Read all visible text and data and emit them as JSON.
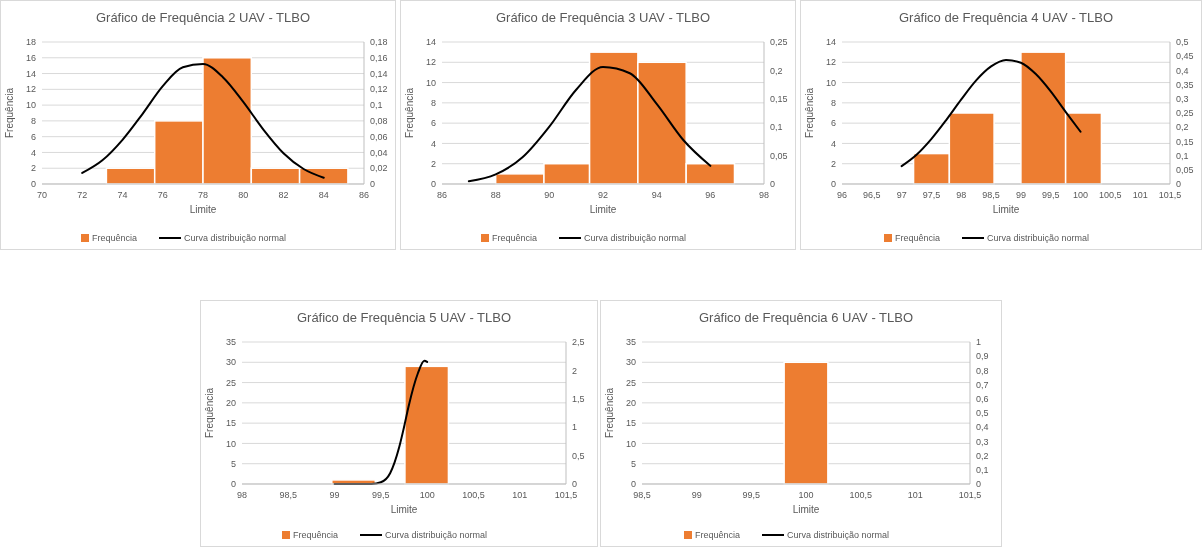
{
  "chart_data": [
    {
      "type": "histogram",
      "title": "Gráfico de Frequência 2 UAV - TLBO",
      "xlabel": "Limite",
      "ylabel": "Frequência",
      "bins": [
        73.2,
        75.6,
        78,
        80.4,
        82.8,
        85.2
      ],
      "xlim": [
        70,
        86
      ],
      "xticks": [
        70,
        72,
        74,
        76,
        78,
        80,
        82,
        84,
        86
      ],
      "ylim": [
        0,
        18
      ],
      "yticks": [
        0,
        2,
        4,
        6,
        8,
        10,
        12,
        14,
        16,
        18
      ],
      "y2lim": [
        0,
        0.18
      ],
      "y2ticks": [
        0,
        {
          "value": 0.02,
          "label": "0,02"
        },
        {
          "value": 0.04,
          "label": "0,04"
        },
        {
          "value": 0.06,
          "label": "0,06"
        },
        {
          "value": 0.08,
          "label": "0,08"
        },
        {
          "value": 0.1,
          "label": "0,1"
        },
        {
          "value": 0.12,
          "label": "0,12"
        },
        {
          "value": 0.14,
          "label": "0,14"
        },
        {
          "value": 0.16,
          "label": "0,16"
        },
        {
          "value": 0.18,
          "label": "0,18"
        }
      ],
      "grid": "y",
      "legend": "bottom",
      "series": [
        {
          "name": "Frequência",
          "color": "#ed7d31",
          "values": [
            2,
            8,
            16,
            2,
            2
          ]
        },
        {
          "name": "Curva distribuição normal",
          "type": "line",
          "axis": "y2",
          "color": "#000000",
          "x": [
            72,
            73,
            74,
            75,
            76,
            77,
            78,
            79,
            80,
            81,
            82,
            83,
            84
          ],
          "values": [
            0.014,
            0.03,
            0.056,
            0.089,
            0.124,
            0.148,
            0.152,
            0.135,
            0.104,
            0.069,
            0.039,
            0.019,
            0.008
          ]
        }
      ]
    },
    {
      "type": "histogram",
      "title": "Gráfico de Frequência 3 UAV - TLBO",
      "xlabel": "Limite",
      "ylabel": "Frequência",
      "bins": [
        88,
        89.8,
        91.5,
        93.3,
        95.1,
        96.9
      ],
      "xlim": [
        86,
        98
      ],
      "xticks": [
        86,
        88,
        90,
        92,
        94,
        96,
        98
      ],
      "ylim": [
        0,
        14
      ],
      "yticks": [
        0,
        2,
        4,
        6,
        8,
        10,
        12,
        14
      ],
      "y2lim": [
        0,
        0.25
      ],
      "y2ticks": [
        0,
        {
          "value": 0.05,
          "label": "0,05"
        },
        {
          "value": 0.1,
          "label": "0,1"
        },
        {
          "value": 0.15,
          "label": "0,15"
        },
        {
          "value": 0.2,
          "label": "0,2"
        },
        {
          "value": 0.25,
          "label": "0,25"
        }
      ],
      "grid": "y",
      "legend": "bottom",
      "series": [
        {
          "name": "Frequência",
          "color": "#ed7d31",
          "values": [
            1,
            2,
            13,
            12,
            2
          ]
        },
        {
          "name": "Curva distribuição normal",
          "type": "line",
          "axis": "y2",
          "color": "#000000",
          "x": [
            87,
            88,
            89,
            90,
            91,
            92,
            93,
            94,
            95,
            96
          ],
          "values": [
            0.005,
            0.017,
            0.047,
            0.101,
            0.166,
            0.206,
            0.195,
            0.141,
            0.077,
            0.032
          ]
        }
      ]
    },
    {
      "type": "histogram",
      "title": "Gráfico de Frequência 4 UAV - TLBO",
      "xlabel": "Limite",
      "ylabel": "Frequência",
      "bins": [
        97.2,
        97.8,
        98.55,
        99,
        99.75,
        100.35
      ],
      "xlim": [
        96,
        101.5
      ],
      "xticks": [
        96,
        {
          "value": 96.5,
          "label": "96,5"
        },
        97,
        {
          "value": 97.5,
          "label": "97,5"
        },
        98,
        {
          "value": 98.5,
          "label": "98,5"
        },
        99,
        {
          "value": 99.5,
          "label": "99,5"
        },
        100,
        {
          "value": 100.5,
          "label": "100,5"
        },
        101,
        {
          "value": 101.5,
          "label": "101,5"
        }
      ],
      "ylim": [
        0,
        14
      ],
      "yticks": [
        0,
        2,
        4,
        6,
        8,
        10,
        12,
        14
      ],
      "y2lim": [
        0,
        0.5
      ],
      "y2ticks": [
        0,
        {
          "value": 0.05,
          "label": "0,05"
        },
        {
          "value": 0.1,
          "label": "0,1"
        },
        {
          "value": 0.15,
          "label": "0,15"
        },
        {
          "value": 0.2,
          "label": "0,2"
        },
        {
          "value": 0.25,
          "label": "0,25"
        },
        {
          "value": 0.3,
          "label": "0,3"
        },
        {
          "value": 0.35,
          "label": "0,35"
        },
        {
          "value": 0.4,
          "label": "0,4"
        },
        {
          "value": 0.45,
          "label": "0,45"
        },
        {
          "value": 0.5,
          "label": "0,5"
        }
      ],
      "grid": "y",
      "legend": "bottom",
      "series": [
        {
          "name": "Frequência",
          "color": "#ed7d31",
          "values": [
            3,
            7,
            0,
            13,
            7
          ]
        },
        {
          "name": "Curva distribuição normal",
          "type": "line",
          "axis": "y2",
          "color": "#000000",
          "x": [
            97,
            97.25,
            97.5,
            97.75,
            98,
            98.25,
            98.5,
            98.75,
            99,
            99.25,
            99.5,
            99.75,
            100
          ],
          "values": [
            0.063,
            0.103,
            0.159,
            0.226,
            0.298,
            0.365,
            0.414,
            0.437,
            0.427,
            0.387,
            0.326,
            0.254,
            0.184
          ]
        }
      ]
    },
    {
      "type": "histogram",
      "title": "Gráfico de Frequência 5 UAV - TLBO",
      "xlabel": "Limite",
      "ylabel": "Frequência",
      "bins": [
        98.97,
        99.44,
        99.76,
        100.23
      ],
      "xlim": [
        98,
        101.5
      ],
      "xticks": [
        98,
        {
          "value": 98.5,
          "label": "98,5"
        },
        99,
        {
          "value": 99.5,
          "label": "99,5"
        },
        100,
        {
          "value": 100.5,
          "label": "100,5"
        },
        101,
        {
          "value": 101.5,
          "label": "101,5"
        }
      ],
      "ylim": [
        0,
        35
      ],
      "yticks": [
        0,
        5,
        10,
        15,
        20,
        25,
        30,
        35
      ],
      "y2lim": [
        0,
        2.5
      ],
      "y2ticks": [
        0,
        {
          "value": 0.5,
          "label": "0,5"
        },
        1,
        {
          "value": 1.5,
          "label": "1,5"
        },
        2,
        {
          "value": 2.5,
          "label": "2,5"
        }
      ],
      "grid": "y",
      "legend": "bottom",
      "series": [
        {
          "name": "Frequência",
          "color": "#ed7d31",
          "values": [
            1,
            0,
            29
          ]
        },
        {
          "name": "Curva distribuição normal",
          "type": "line",
          "axis": "y2",
          "color": "#000000",
          "x": [
            99,
            99.2,
            99.4,
            99.5,
            99.6,
            99.7,
            99.75,
            99.8,
            99.9,
            99.97,
            100
          ],
          "values": [
            0,
            0,
            0,
            0.03,
            0.19,
            0.66,
            1,
            1.37,
            1.95,
            2.17,
            2.15
          ]
        }
      ]
    },
    {
      "type": "histogram",
      "title": "Gráfico de Frequência 6 UAV - TLBO",
      "xlabel": "Limite",
      "ylabel": "Frequência",
      "bins": [
        99.8,
        100.2
      ],
      "xlim": [
        98.5,
        101.5
      ],
      "xticks": [
        {
          "value": 98.5,
          "label": "98,5"
        },
        99,
        {
          "value": 99.5,
          "label": "99,5"
        },
        100,
        {
          "value": 100.5,
          "label": "100,5"
        },
        101,
        {
          "value": 101.5,
          "label": "101,5"
        }
      ],
      "ylim": [
        0,
        35
      ],
      "yticks": [
        0,
        5,
        10,
        15,
        20,
        25,
        30,
        35
      ],
      "y2lim": [
        0,
        1
      ],
      "y2ticks": [
        0,
        {
          "value": 0.1,
          "label": "0,1"
        },
        {
          "value": 0.2,
          "label": "0,2"
        },
        {
          "value": 0.3,
          "label": "0,3"
        },
        {
          "value": 0.4,
          "label": "0,4"
        },
        {
          "value": 0.5,
          "label": "0,5"
        },
        {
          "value": 0.6,
          "label": "0,6"
        },
        {
          "value": 0.7,
          "label": "0,7"
        },
        {
          "value": 0.8,
          "label": "0,8"
        },
        {
          "value": 0.9,
          "label": "0,9"
        },
        1
      ],
      "grid": "y",
      "legend": "bottom",
      "series": [
        {
          "name": "Frequência",
          "color": "#ed7d31",
          "values": [
            30
          ]
        },
        {
          "name": "Curva distribuição normal",
          "type": "line",
          "axis": "y2",
          "color": "#000000"
        }
      ]
    }
  ]
}
